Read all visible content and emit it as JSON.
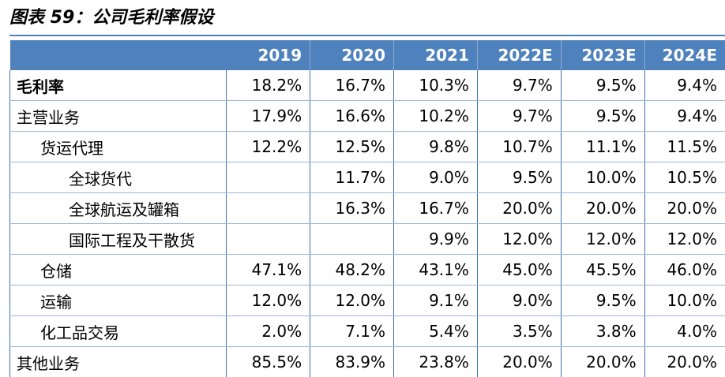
{
  "title": "图表 59：公司毛利率假设",
  "table": {
    "header": [
      "",
      "2019",
      "2020",
      "2021",
      "2022E",
      "2023E",
      "2024E"
    ],
    "rows": [
      {
        "label": "毛利率",
        "values": [
          "18.2%",
          "16.7%",
          "10.3%",
          "9.7%",
          "9.5%",
          "9.4%"
        ]
      },
      {
        "label": "主营业务",
        "values": [
          "17.9%",
          "16.6%",
          "10.2%",
          "9.7%",
          "9.5%",
          "9.4%"
        ]
      },
      {
        "label": "货运代理",
        "values": [
          "12.2%",
          "12.5%",
          "9.8%",
          "10.7%",
          "11.1%",
          "11.5%"
        ]
      },
      {
        "label": "全球货代",
        "values": [
          "",
          "11.7%",
          "9.0%",
          "9.5%",
          "10.0%",
          "10.5%"
        ]
      },
      {
        "label": "全球航运及罐箱",
        "values": [
          "",
          "16.3%",
          "16.7%",
          "20.0%",
          "20.0%",
          "20.0%"
        ]
      },
      {
        "label": "国际工程及干散货",
        "values": [
          "",
          "",
          "9.9%",
          "12.0%",
          "12.0%",
          "12.0%"
        ]
      },
      {
        "label": "仓储",
        "values": [
          "47.1%",
          "48.2%",
          "43.1%",
          "45.0%",
          "45.5%",
          "46.0%"
        ]
      },
      {
        "label": "运输",
        "values": [
          "12.0%",
          "12.0%",
          "9.1%",
          "9.0%",
          "9.5%",
          "10.0%"
        ]
      },
      {
        "label": "化工品交易",
        "values": [
          "2.0%",
          "7.1%",
          "5.4%",
          "3.5%",
          "3.8%",
          "4.0%"
        ]
      },
      {
        "label": "其他业务",
        "values": [
          "85.5%",
          "83.9%",
          "23.8%",
          "20.0%",
          "20.0%",
          "20.0%"
        ]
      }
    ]
  },
  "colors": {
    "header_bg": "#4f81bd",
    "header_text": "#ffffff",
    "grid_line": "#9bb7dd"
  }
}
